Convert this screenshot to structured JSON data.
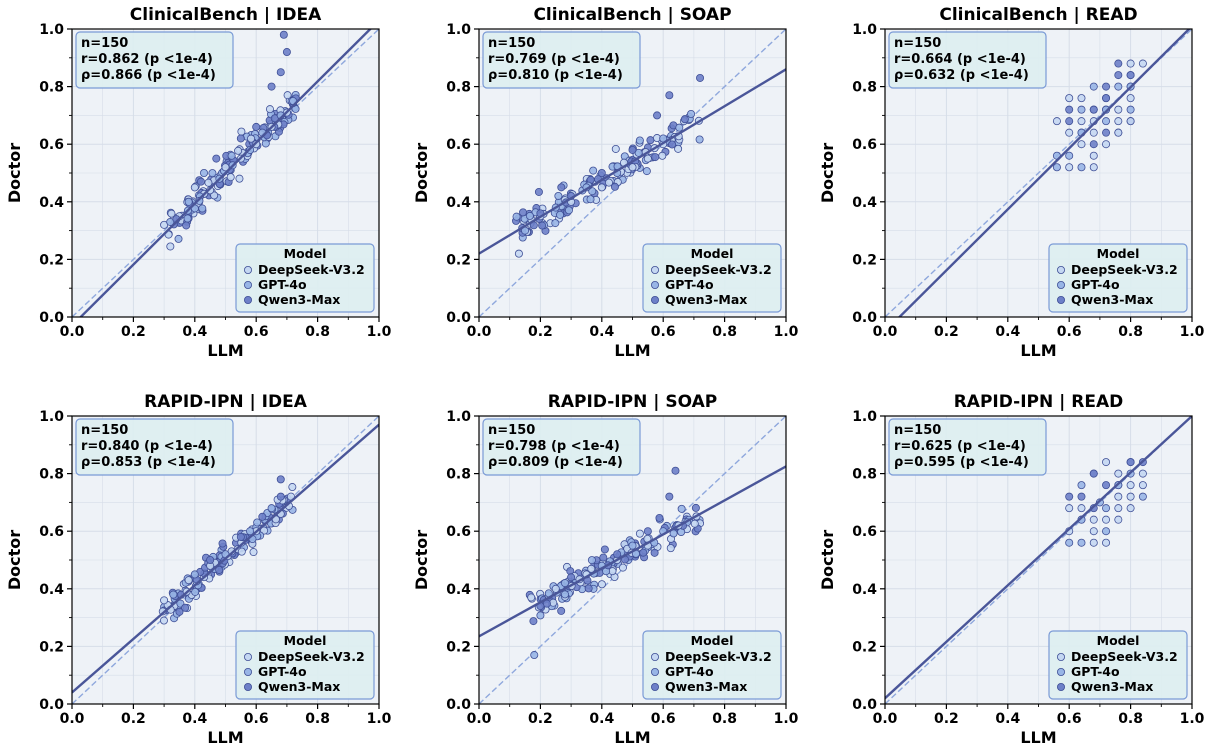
{
  "colors": {
    "panel_bg": "#eef2f7",
    "grid": "#d6dde8",
    "fit_line": "#4a5699",
    "diagonal": "#8fa8dd",
    "box_bg": "#ddeef0",
    "box_border": "#7a9ad6",
    "axis": "#000000",
    "DeepSeek-V3.2": "#c4d7f2",
    "GPT-4o": "#98b5e6",
    "Qwen3-Max": "#6d80c8",
    "marker_edge": "#3f4f96"
  },
  "chart_data": [
    {
      "type": "scatter",
      "title": "ClinicalBench | IDEA",
      "xlabel": "LLM",
      "ylabel": "Doctor",
      "xlim": [
        0,
        1
      ],
      "ylim": [
        0,
        1
      ],
      "xticks": [
        "0.0",
        "0.2",
        "0.4",
        "0.6",
        "0.8",
        "1.0"
      ],
      "yticks": [
        "0.0",
        "0.2",
        "0.4",
        "0.6",
        "0.8",
        "1.0"
      ],
      "grid": true,
      "stats": [
        "n=150",
        "r=0.862 (p <1e-4)",
        "ρ=0.866 (p <1e-4)"
      ],
      "stats_placement": "top-left",
      "legend": {
        "title": "Model",
        "placement": "lower-right",
        "entries": [
          "DeepSeek-V3.2",
          "GPT-4o",
          "Qwen3-Max"
        ]
      },
      "fit_line": {
        "slope": 1.06,
        "intercept": -0.03
      },
      "diagonal": true,
      "seed": 11,
      "cluster": {
        "xmin": 0.29,
        "xmax": 0.73,
        "noise": 0.06,
        "n": 150
      },
      "series": [
        {
          "name": "DeepSeek-V3.2",
          "x": [
            0.3,
            0.35,
            0.4,
            0.45,
            0.5,
            0.55,
            0.6,
            0.65,
            0.7
          ],
          "y": [
            0.32,
            0.35,
            0.45,
            0.44,
            0.52,
            0.55,
            0.6,
            0.66,
            0.71
          ]
        },
        {
          "name": "GPT-4o",
          "x": [
            0.32,
            0.38,
            0.43,
            0.48,
            0.52,
            0.58,
            0.62,
            0.68,
            0.72
          ],
          "y": [
            0.33,
            0.4,
            0.5,
            0.48,
            0.56,
            0.58,
            0.64,
            0.7,
            0.75
          ]
        },
        {
          "name": "Qwen3-Max",
          "x": [
            0.34,
            0.42,
            0.47,
            0.55,
            0.6,
            0.65,
            0.68,
            0.7,
            0.69
          ],
          "y": [
            0.34,
            0.47,
            0.55,
            0.62,
            0.66,
            0.8,
            0.85,
            0.92,
            0.98
          ]
        }
      ]
    },
    {
      "type": "scatter",
      "title": "ClinicalBench | SOAP",
      "xlabel": "LLM",
      "ylabel": "Doctor",
      "xlim": [
        0,
        1
      ],
      "ylim": [
        0,
        1
      ],
      "xticks": [
        "0.0",
        "0.2",
        "0.4",
        "0.6",
        "0.8",
        "1.0"
      ],
      "yticks": [
        "0.0",
        "0.2",
        "0.4",
        "0.6",
        "0.8",
        "1.0"
      ],
      "grid": true,
      "stats": [
        "n=150",
        "r=0.769 (p <1e-4)",
        "ρ=0.810 (p <1e-4)"
      ],
      "stats_placement": "top-left",
      "legend": {
        "title": "Model",
        "placement": "lower-right",
        "entries": [
          "DeepSeek-V3.2",
          "GPT-4o",
          "Qwen3-Max"
        ]
      },
      "fit_line": {
        "slope": 0.64,
        "intercept": 0.22
      },
      "diagonal": true,
      "seed": 23,
      "cluster": {
        "xmin": 0.12,
        "xmax": 0.72,
        "noise": 0.065,
        "n": 150
      },
      "series": [
        {
          "name": "DeepSeek-V3.2",
          "x": [
            0.13,
            0.2,
            0.3,
            0.4,
            0.5,
            0.55,
            0.6
          ],
          "y": [
            0.22,
            0.35,
            0.4,
            0.45,
            0.52,
            0.55,
            0.6
          ]
        },
        {
          "name": "GPT-4o",
          "x": [
            0.15,
            0.25,
            0.35,
            0.45,
            0.52,
            0.6
          ],
          "y": [
            0.3,
            0.38,
            0.45,
            0.5,
            0.57,
            0.62
          ]
        },
        {
          "name": "Qwen3-Max",
          "x": [
            0.2,
            0.3,
            0.4,
            0.5,
            0.58,
            0.62,
            0.72
          ],
          "y": [
            0.36,
            0.42,
            0.5,
            0.58,
            0.7,
            0.77,
            0.83
          ]
        }
      ]
    },
    {
      "type": "scatter",
      "title": "ClinicalBench | READ",
      "xlabel": "LLM",
      "ylabel": "Doctor",
      "xlim": [
        0,
        1
      ],
      "ylim": [
        0,
        1
      ],
      "xticks": [
        "0.0",
        "0.2",
        "0.4",
        "0.6",
        "0.8",
        "1.0"
      ],
      "yticks": [
        "0.0",
        "0.2",
        "0.4",
        "0.6",
        "0.8",
        "1.0"
      ],
      "grid": true,
      "stats": [
        "n=150",
        "r=0.664 (p <1e-4)",
        "ρ=0.632 (p <1e-4)"
      ],
      "stats_placement": "top-left",
      "legend": {
        "title": "Model",
        "placement": "lower-right",
        "entries": [
          "DeepSeek-V3.2",
          "GPT-4o",
          "Qwen3-Max"
        ]
      },
      "fit_line": {
        "slope": 1.06,
        "intercept": -0.05
      },
      "diagonal": true,
      "seed": 37,
      "grid_points": {
        "xs": [
          0.56,
          0.6,
          0.64,
          0.68,
          0.72,
          0.76,
          0.8
        ],
        "ys": [
          0.52,
          0.56,
          0.6,
          0.64,
          0.68,
          0.72,
          0.76,
          0.8,
          0.84,
          0.88
        ],
        "band": 0.12
      },
      "series": [
        {
          "name": "DeepSeek-V3.2",
          "x": [
            0.6,
            0.68,
            0.76,
            0.8,
            0.84
          ],
          "y": [
            0.76,
            0.52,
            0.64,
            0.68,
            0.88
          ]
        },
        {
          "name": "GPT-4o",
          "x": [
            0.56,
            0.64,
            0.72,
            0.8
          ],
          "y": [
            0.56,
            0.64,
            0.72,
            0.8
          ]
        },
        {
          "name": "Qwen3-Max",
          "x": [
            0.68,
            0.72,
            0.76,
            0.8
          ],
          "y": [
            0.72,
            0.76,
            0.84,
            0.84
          ]
        }
      ]
    },
    {
      "type": "scatter",
      "title": "RAPID-IPN | IDEA",
      "xlabel": "LLM",
      "ylabel": "Doctor",
      "xlim": [
        0,
        1
      ],
      "ylim": [
        0,
        1
      ],
      "xticks": [
        "0.0",
        "0.2",
        "0.4",
        "0.6",
        "0.8",
        "1.0"
      ],
      "yticks": [
        "0.0",
        "0.2",
        "0.4",
        "0.6",
        "0.8",
        "1.0"
      ],
      "grid": true,
      "stats": [
        "n=150",
        "r=0.840 (p <1e-4)",
        "ρ=0.853 (p <1e-4)"
      ],
      "stats_placement": "top-left",
      "legend": {
        "title": "Model",
        "placement": "lower-right",
        "entries": [
          "DeepSeek-V3.2",
          "GPT-4o",
          "Qwen3-Max"
        ]
      },
      "fit_line": {
        "slope": 0.93,
        "intercept": 0.04
      },
      "diagonal": true,
      "seed": 41,
      "cluster": {
        "xmin": 0.29,
        "xmax": 0.72,
        "noise": 0.05,
        "n": 150
      },
      "series": [
        {
          "name": "DeepSeek-V3.2",
          "x": [
            0.3,
            0.38,
            0.45,
            0.52,
            0.6,
            0.68
          ],
          "y": [
            0.36,
            0.43,
            0.48,
            0.53,
            0.6,
            0.66
          ]
        },
        {
          "name": "GPT-4o",
          "x": [
            0.33,
            0.4,
            0.5,
            0.58,
            0.65
          ],
          "y": [
            0.38,
            0.45,
            0.52,
            0.6,
            0.68
          ]
        },
        {
          "name": "Qwen3-Max",
          "x": [
            0.35,
            0.45,
            0.55,
            0.62,
            0.68,
            0.68
          ],
          "y": [
            0.32,
            0.5,
            0.58,
            0.65,
            0.72,
            0.78
          ]
        }
      ]
    },
    {
      "type": "scatter",
      "title": "RAPID-IPN | SOAP",
      "xlabel": "LLM",
      "ylabel": "Doctor",
      "xlim": [
        0,
        1
      ],
      "ylim": [
        0,
        1
      ],
      "xticks": [
        "0.0",
        "0.2",
        "0.4",
        "0.6",
        "0.8",
        "1.0"
      ],
      "yticks": [
        "0.0",
        "0.2",
        "0.4",
        "0.6",
        "0.8",
        "1.0"
      ],
      "grid": true,
      "stats": [
        "n=150",
        "r=0.798 (p <1e-4)",
        "ρ=0.809 (p <1e-4)"
      ],
      "stats_placement": "top-left",
      "legend": {
        "title": "Model",
        "placement": "lower-right",
        "entries": [
          "DeepSeek-V3.2",
          "GPT-4o",
          "Qwen3-Max"
        ]
      },
      "fit_line": {
        "slope": 0.59,
        "intercept": 0.235
      },
      "diagonal": true,
      "seed": 53,
      "cluster": {
        "xmin": 0.15,
        "xmax": 0.72,
        "noise": 0.055,
        "n": 150
      },
      "series": [
        {
          "name": "DeepSeek-V3.2",
          "x": [
            0.17,
            0.25,
            0.35,
            0.45,
            0.55,
            0.65
          ],
          "y": [
            0.37,
            0.4,
            0.45,
            0.5,
            0.55,
            0.62
          ]
        },
        {
          "name": "GPT-4o",
          "x": [
            0.18,
            0.28,
            0.4,
            0.5,
            0.6
          ],
          "y": [
            0.17,
            0.42,
            0.48,
            0.55,
            0.6
          ]
        },
        {
          "name": "Qwen3-Max",
          "x": [
            0.2,
            0.3,
            0.45,
            0.55,
            0.62,
            0.64
          ],
          "y": [
            0.34,
            0.44,
            0.52,
            0.6,
            0.72,
            0.81
          ]
        }
      ]
    },
    {
      "type": "scatter",
      "title": "RAPID-IPN | READ",
      "xlabel": "LLM",
      "ylabel": "Doctor",
      "xlim": [
        0,
        1
      ],
      "ylim": [
        0,
        1
      ],
      "xticks": [
        "0.0",
        "0.2",
        "0.4",
        "0.6",
        "0.8",
        "1.0"
      ],
      "yticks": [
        "0.0",
        "0.2",
        "0.4",
        "0.6",
        "0.8",
        "1.0"
      ],
      "grid": true,
      "stats": [
        "n=150",
        "r=0.625 (p <1e-4)",
        "ρ=0.595 (p <1e-4)"
      ],
      "stats_placement": "top-left",
      "legend": {
        "title": "Model",
        "placement": "lower-right",
        "entries": [
          "DeepSeek-V3.2",
          "GPT-4o",
          "Qwen3-Max"
        ]
      },
      "fit_line": {
        "slope": 0.98,
        "intercept": 0.02
      },
      "diagonal": true,
      "seed": 67,
      "grid_points": {
        "xs": [
          0.6,
          0.64,
          0.68,
          0.72,
          0.76,
          0.8,
          0.84
        ],
        "ys": [
          0.56,
          0.6,
          0.64,
          0.68,
          0.72,
          0.76,
          0.8,
          0.84
        ],
        "band": 0.12
      },
      "series": [
        {
          "name": "DeepSeek-V3.2",
          "x": [
            0.68,
            0.72,
            0.76,
            0.8
          ],
          "y": [
            0.56,
            0.56,
            0.68,
            0.76
          ]
        },
        {
          "name": "GPT-4o",
          "x": [
            0.64,
            0.7,
            0.76,
            0.8
          ],
          "y": [
            0.64,
            0.7,
            0.76,
            0.8
          ]
        },
        {
          "name": "Qwen3-Max",
          "x": [
            0.6,
            0.68,
            0.72,
            0.8
          ],
          "y": [
            0.72,
            0.8,
            0.76,
            0.84
          ]
        }
      ]
    }
  ]
}
